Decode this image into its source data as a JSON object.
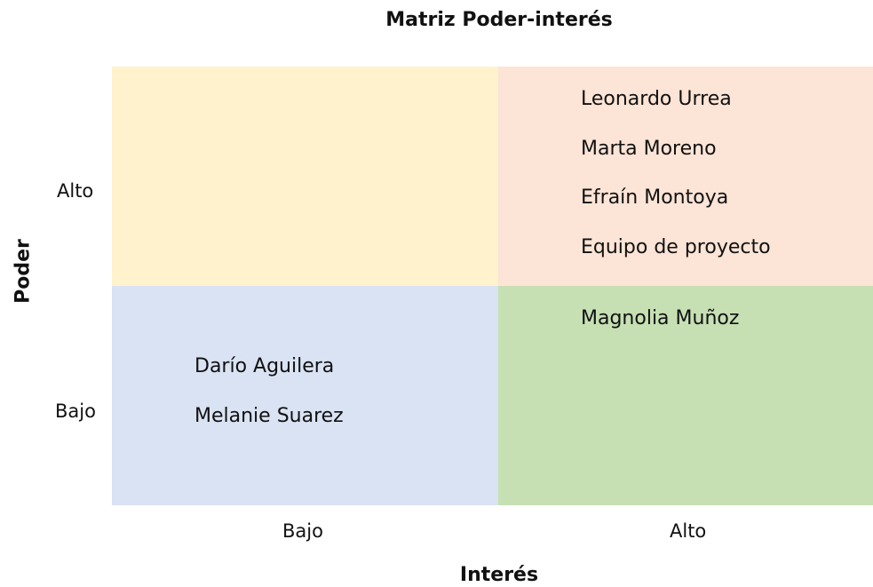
{
  "title": "Matriz Poder-interés",
  "y_axis": {
    "label": "Poder",
    "levels": [
      "Alto",
      "Bajo"
    ]
  },
  "x_axis": {
    "label": "Interés",
    "levels": [
      "Bajo",
      "Alto"
    ]
  },
  "quadrants": [
    {
      "names": []
    },
    {
      "names": [
        "Leonardo Urrea",
        "Marta Moreno",
        "Efraín Montoya",
        "Equipo de proyecto"
      ]
    },
    {
      "names": [
        "Darío Aguilera",
        "Melanie Suarez"
      ]
    },
    {
      "names": [
        "Magnolia Muñoz"
      ]
    }
  ]
}
